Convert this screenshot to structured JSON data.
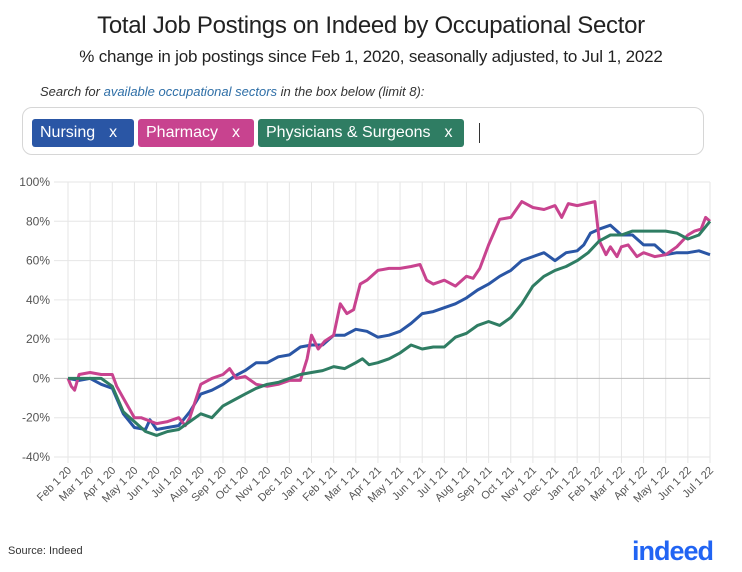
{
  "header": {
    "title": "Total Job Postings on Indeed by Occupational Sector",
    "subtitle": "% change in job postings since Feb 1, 2020, seasonally adjusted, to Jul 1, 2022"
  },
  "search": {
    "hint_prefix": "Search for ",
    "hint_link": "available occupational sectors",
    "hint_suffix": " in the box below (limit 8):",
    "chips": [
      {
        "label": "Nursing",
        "remove": "x",
        "color": "#2a56a5"
      },
      {
        "label": "Pharmacy",
        "remove": "x",
        "color": "#c8438f"
      },
      {
        "label": "Physicians & Surgeons",
        "remove": "x",
        "color": "#2f7d63"
      }
    ]
  },
  "footer": {
    "source": "Source: Indeed",
    "logo": "indeed"
  },
  "chart_data": {
    "type": "line",
    "title": "Total Job Postings on Indeed by Occupational Sector",
    "xlabel": "",
    "ylabel": "% change since Feb 1, 2020",
    "ylim": [
      -40,
      100
    ],
    "yticks": [
      "100%",
      "80%",
      "60%",
      "40%",
      "20%",
      "0%",
      "-20%",
      "-40%"
    ],
    "ytick_values": [
      100,
      80,
      60,
      40,
      20,
      0,
      -20,
      -40
    ],
    "categories": [
      "Feb 1 20",
      "Mar 1 20",
      "Apr 1 20",
      "May 1 20",
      "Jun 1 20",
      "Jul 1 20",
      "Aug 1 20",
      "Sep 1 20",
      "Oct 1 20",
      "Nov 1 20",
      "Dec 1 20",
      "Jan 1 21",
      "Feb 1 21",
      "Mar 1 21",
      "Apr 1 21",
      "May 1 21",
      "Jun 1 21",
      "Jul 1 21",
      "Aug 1 21",
      "Sep 1 21",
      "Oct 1 21",
      "Nov 1 21",
      "Dec 1 21",
      "Jan 1 22",
      "Feb 1 22",
      "Mar 1 22",
      "Apr 1 22",
      "May 1 22",
      "Jun 1 22",
      "Jul 1 22"
    ],
    "grid": true,
    "legend": "top search box",
    "series": [
      {
        "name": "Nursing",
        "color": "#2a56a5",
        "x": [
          0,
          0.5,
          1,
          1.5,
          2,
          2.5,
          3,
          3.5,
          3.7,
          4,
          4.5,
          5,
          5.5,
          6,
          6.5,
          7,
          7.5,
          8,
          8.5,
          9,
          9.5,
          10,
          10.5,
          11,
          11.5,
          12,
          12.5,
          13,
          13.5,
          14,
          14.5,
          15,
          15.5,
          16,
          16.5,
          17,
          17.5,
          18,
          18.5,
          19,
          19.5,
          20,
          20.5,
          21,
          21.5,
          22,
          22.5,
          23,
          23.3,
          23.6,
          24,
          24.5,
          25,
          25.5,
          26,
          26.5,
          27,
          27.5,
          28,
          28.5,
          29
        ],
        "y": [
          0,
          -1,
          0,
          -3,
          -5,
          -18,
          -25,
          -26,
          -21,
          -26,
          -25,
          -24,
          -17,
          -8,
          -6,
          -3,
          1,
          4,
          8,
          8,
          11,
          12,
          16,
          17,
          17,
          22,
          22,
          25,
          24,
          21,
          22,
          24,
          28,
          33,
          34,
          36,
          38,
          41,
          45,
          48,
          52,
          55,
          60,
          62,
          64,
          60,
          64,
          65,
          68,
          74,
          76,
          78,
          73,
          73,
          68,
          68,
          63,
          64,
          64,
          65,
          63
        ]
      },
      {
        "name": "Pharmacy",
        "color": "#c8438f",
        "x": [
          0,
          0.15,
          0.3,
          0.5,
          1,
          1.5,
          2,
          2.2,
          2.5,
          3,
          3.3,
          4,
          4.5,
          5,
          5.3,
          5.5,
          6,
          6.5,
          7,
          7.3,
          7.6,
          8,
          8.5,
          9,
          9.5,
          10,
          10.5,
          10.8,
          11,
          11.3,
          11.6,
          12,
          12.3,
          12.6,
          12.9,
          13.2,
          13.5,
          14,
          14.5,
          15,
          15.5,
          15.9,
          16.2,
          16.5,
          17,
          17.5,
          18,
          18.3,
          18.6,
          19,
          19.5,
          20,
          20.5,
          21,
          21.5,
          22,
          22.3,
          22.6,
          23,
          23.4,
          23.8,
          24,
          24.3,
          24.5,
          24.8,
          25,
          25.3,
          25.7,
          26,
          26.5,
          27,
          27.5,
          28,
          28.3,
          28.6,
          28.8,
          29
        ],
        "y": [
          0,
          -4,
          -6,
          2,
          3,
          2,
          2,
          -4,
          -10,
          -20,
          -20,
          -23,
          -22,
          -20,
          -24,
          -20,
          -3,
          0,
          2,
          5,
          0,
          1,
          -3,
          -4,
          -3,
          -1,
          -1,
          10,
          22,
          15,
          19,
          22,
          38,
          33,
          35,
          48,
          50,
          55,
          56,
          56,
          57,
          58,
          50,
          48,
          50,
          47,
          52,
          51,
          56,
          68,
          81,
          82,
          90,
          87,
          86,
          88,
          82,
          89,
          88,
          89,
          90,
          70,
          63,
          67,
          62,
          67,
          68,
          62,
          64,
          62,
          63,
          67,
          73,
          75,
          76,
          82,
          80
        ]
      },
      {
        "name": "Physicians & Surgeons",
        "color": "#2f7d63",
        "x": [
          0,
          0.5,
          1,
          1.5,
          2,
          2.5,
          3,
          3.5,
          4,
          4.5,
          5,
          5.5,
          6,
          6.5,
          7,
          7.5,
          8,
          8.5,
          9,
          9.5,
          10,
          10.5,
          11,
          11.5,
          12,
          12.5,
          13,
          13.3,
          13.6,
          14,
          14.5,
          15,
          15.5,
          16,
          16.5,
          17,
          17.5,
          18,
          18.5,
          19,
          19.5,
          20,
          20.5,
          21,
          21.5,
          22,
          22.5,
          23,
          23.5,
          24,
          24.5,
          25,
          25.5,
          26,
          26.5,
          27,
          27.5,
          28,
          28.5,
          29
        ],
        "y": [
          0,
          0,
          0,
          0,
          -4,
          -17,
          -22,
          -27,
          -29,
          -27,
          -26,
          -22,
          -18,
          -20,
          -14,
          -11,
          -8,
          -5,
          -3,
          -2,
          0,
          2,
          3,
          4,
          6,
          5,
          8,
          10,
          7,
          8,
          10,
          13,
          17,
          15,
          16,
          16,
          21,
          23,
          27,
          29,
          27,
          31,
          38,
          47,
          52,
          55,
          57,
          60,
          64,
          70,
          73,
          73,
          75,
          75,
          75,
          75,
          74,
          71,
          73,
          80
        ]
      }
    ]
  }
}
